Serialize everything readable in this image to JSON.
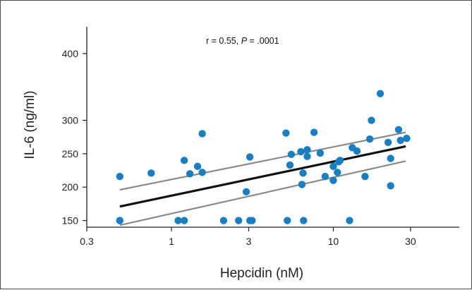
{
  "chart_data": {
    "type": "scatter",
    "xlabel": "Hepcidin (nM)",
    "ylabel": "IL-6 (ng/ml)",
    "x_scale": "log",
    "xlim": [
      0.3,
      60
    ],
    "ylim": [
      140,
      440
    ],
    "x_ticks": [
      {
        "value": 0.3,
        "label": "0.3"
      },
      {
        "value": 1,
        "label": "1"
      },
      {
        "value": 3,
        "label": "3"
      },
      {
        "value": 10,
        "label": "10"
      },
      {
        "value": 30,
        "label": "30"
      }
    ],
    "y_ticks": [
      {
        "value": 150,
        "label": "150"
      },
      {
        "value": 200,
        "label": "200"
      },
      {
        "value": 250,
        "label": "250"
      },
      {
        "value": 300,
        "label": "300"
      },
      {
        "value": 400,
        "label": "400"
      }
    ],
    "annotation": {
      "prefix": "r = 0.55, ",
      "italic": "P",
      "suffix": " = .0001"
    },
    "grid": false,
    "colors": {
      "points": "#1a7fc2",
      "fit": "#111111",
      "ci": "#8a8a8a",
      "axes": "#222222"
    },
    "points": [
      {
        "x": 0.48,
        "y": 216
      },
      {
        "x": 0.48,
        "y": 150
      },
      {
        "x": 0.48,
        "y": 150
      },
      {
        "x": 0.75,
        "y": 221
      },
      {
        "x": 1.1,
        "y": 150
      },
      {
        "x": 1.2,
        "y": 240
      },
      {
        "x": 1.2,
        "y": 150
      },
      {
        "x": 1.3,
        "y": 220
      },
      {
        "x": 1.45,
        "y": 231
      },
      {
        "x": 1.55,
        "y": 222
      },
      {
        "x": 1.55,
        "y": 280
      },
      {
        "x": 2.1,
        "y": 150
      },
      {
        "x": 2.6,
        "y": 150
      },
      {
        "x": 2.9,
        "y": 193
      },
      {
        "x": 3.05,
        "y": 245
      },
      {
        "x": 3.05,
        "y": 150
      },
      {
        "x": 3.15,
        "y": 150
      },
      {
        "x": 5.1,
        "y": 281
      },
      {
        "x": 5.2,
        "y": 150
      },
      {
        "x": 5.4,
        "y": 233
      },
      {
        "x": 5.5,
        "y": 249
      },
      {
        "x": 6.3,
        "y": 253
      },
      {
        "x": 6.4,
        "y": 204
      },
      {
        "x": 6.5,
        "y": 221
      },
      {
        "x": 6.55,
        "y": 150
      },
      {
        "x": 6.9,
        "y": 246
      },
      {
        "x": 6.9,
        "y": 256
      },
      {
        "x": 7.6,
        "y": 282
      },
      {
        "x": 8.3,
        "y": 251
      },
      {
        "x": 8.9,
        "y": 216
      },
      {
        "x": 10,
        "y": 231
      },
      {
        "x": 10,
        "y": 210
      },
      {
        "x": 10.6,
        "y": 222
      },
      {
        "x": 10.8,
        "y": 238
      },
      {
        "x": 11,
        "y": 240
      },
      {
        "x": 12.6,
        "y": 150
      },
      {
        "x": 13.1,
        "y": 259
      },
      {
        "x": 14,
        "y": 254
      },
      {
        "x": 15.7,
        "y": 216
      },
      {
        "x": 16.8,
        "y": 272
      },
      {
        "x": 17.2,
        "y": 300
      },
      {
        "x": 19.5,
        "y": 340
      },
      {
        "x": 21.8,
        "y": 267
      },
      {
        "x": 22.6,
        "y": 243
      },
      {
        "x": 22.6,
        "y": 202
      },
      {
        "x": 25.3,
        "y": 286
      },
      {
        "x": 26,
        "y": 270
      },
      {
        "x": 28.4,
        "y": 273
      }
    ],
    "fit_line": [
      {
        "x": 0.48,
        "y": 171
      },
      {
        "x": 28,
        "y": 261
      }
    ],
    "ci_upper": [
      {
        "x": 0.48,
        "y": 196
      },
      {
        "x": 28,
        "y": 282
      }
    ],
    "ci_lower": [
      {
        "x": 0.48,
        "y": 143
      },
      {
        "x": 28,
        "y": 239
      }
    ]
  }
}
